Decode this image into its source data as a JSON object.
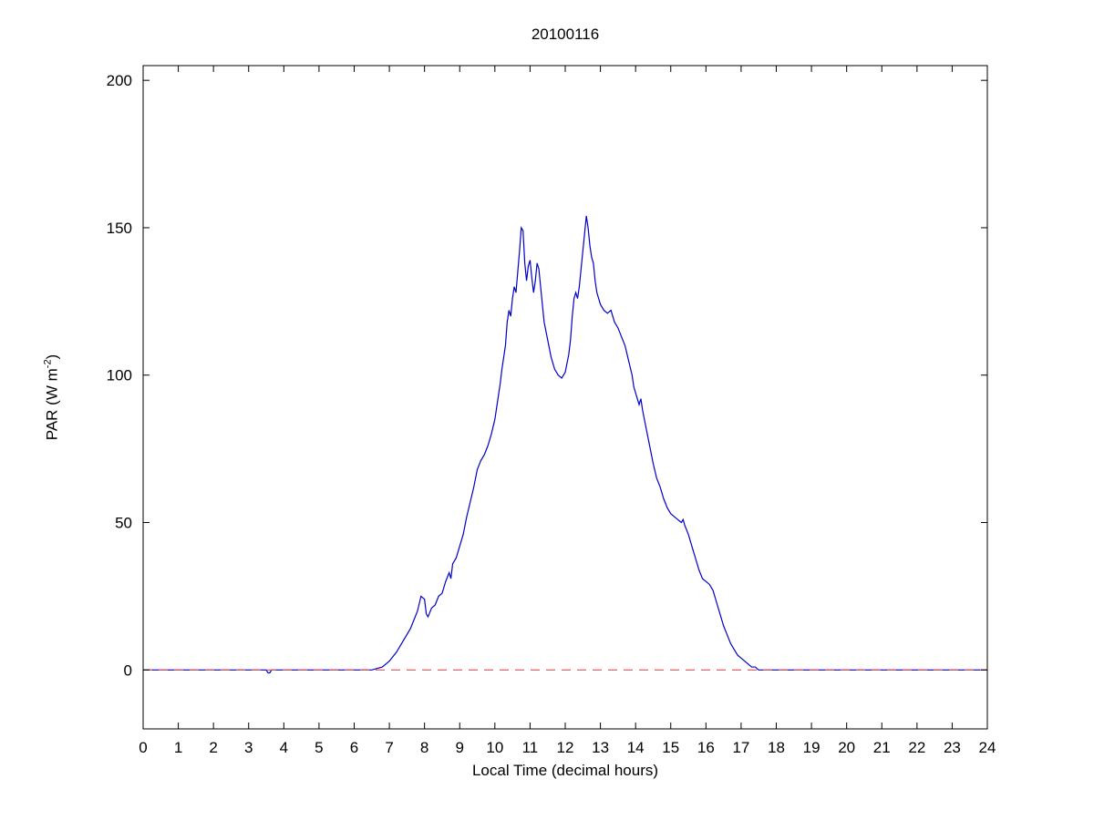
{
  "figure": {
    "background": "#ffffff",
    "axis_color": "#000000",
    "text_color": "#000000"
  },
  "chart_data": {
    "type": "line",
    "title": "20100116",
    "xlabel": "Local Time (decimal hours)",
    "ylabel": "PAR (W m-2)",
    "ylabel_prefix": "PAR (W m",
    "ylabel_sup": "-2",
    "ylabel_suffix": ")",
    "xlim": [
      0,
      24
    ],
    "ylim": [
      -20,
      205
    ],
    "xticks": [
      0,
      1,
      2,
      3,
      4,
      5,
      6,
      7,
      8,
      9,
      10,
      11,
      12,
      13,
      14,
      15,
      16,
      17,
      18,
      19,
      20,
      21,
      22,
      23,
      24
    ],
    "yticks": [
      0,
      50,
      100,
      150,
      200
    ],
    "grid": false,
    "legend": "none",
    "series": [
      {
        "name": "PAR",
        "type": "line",
        "style": "solid",
        "color": "#0000cc",
        "x": [
          0,
          1,
          2,
          3,
          3.5,
          3.55,
          3.6,
          3.65,
          4,
          5,
          6,
          6.5,
          6.8,
          7,
          7.2,
          7.4,
          7.6,
          7.8,
          7.9,
          8,
          8.05,
          8.1,
          8.2,
          8.3,
          8.4,
          8.5,
          8.6,
          8.7,
          8.75,
          8.8,
          8.9,
          9,
          9.1,
          9.2,
          9.3,
          9.4,
          9.5,
          9.6,
          9.7,
          9.8,
          9.9,
          10,
          10.1,
          10.15,
          10.2,
          10.3,
          10.35,
          10.4,
          10.45,
          10.5,
          10.55,
          10.6,
          10.65,
          10.7,
          10.75,
          10.8,
          10.85,
          10.9,
          10.95,
          11,
          11.05,
          11.1,
          11.15,
          11.2,
          11.25,
          11.3,
          11.35,
          11.4,
          11.5,
          11.6,
          11.7,
          11.8,
          11.9,
          12,
          12.1,
          12.15,
          12.2,
          12.25,
          12.3,
          12.35,
          12.4,
          12.45,
          12.5,
          12.55,
          12.6,
          12.65,
          12.7,
          12.75,
          12.8,
          12.85,
          12.9,
          13,
          13.1,
          13.2,
          13.3,
          13.35,
          13.4,
          13.5,
          13.6,
          13.7,
          13.8,
          13.9,
          13.95,
          14,
          14.1,
          14.15,
          14.2,
          14.3,
          14.4,
          14.5,
          14.6,
          14.7,
          14.75,
          14.8,
          14.9,
          15,
          15.1,
          15.2,
          15.3,
          15.35,
          15.4,
          15.5,
          15.6,
          15.7,
          15.8,
          15.9,
          16,
          16.1,
          16.2,
          16.3,
          16.4,
          16.5,
          16.6,
          16.7,
          16.8,
          16.9,
          17,
          17.1,
          17.2,
          17.3,
          17.4,
          17.5,
          18,
          19,
          20,
          21,
          22,
          23,
          24
        ],
        "y": [
          0,
          0,
          0,
          0,
          0,
          -1,
          -1,
          0,
          0,
          0,
          0,
          0,
          1,
          3,
          6,
          10,
          14,
          20,
          25,
          24,
          19,
          18,
          21,
          22,
          25,
          26,
          30,
          33,
          31,
          36,
          38,
          42,
          46,
          52,
          57,
          62,
          68,
          71,
          73,
          76,
          80,
          85,
          93,
          97,
          102,
          110,
          118,
          122,
          120,
          126,
          130,
          128,
          135,
          142,
          150,
          149,
          138,
          132,
          137,
          139,
          133,
          128,
          132,
          138,
          136,
          130,
          124,
          118,
          112,
          106,
          102,
          100,
          99,
          101,
          107,
          112,
          120,
          126,
          128,
          126,
          130,
          136,
          142,
          148,
          154,
          150,
          144,
          140,
          138,
          132,
          128,
          124,
          122,
          121,
          122,
          120,
          118,
          116,
          113,
          110,
          105,
          100,
          96,
          94,
          90,
          92,
          88,
          82,
          76,
          70,
          65,
          62,
          60,
          58,
          55,
          53,
          52,
          51,
          50,
          51,
          49,
          46,
          42,
          38,
          34,
          31,
          30,
          29,
          27,
          23,
          19,
          15,
          12,
          9,
          7,
          5,
          4,
          3,
          2,
          1,
          1,
          0,
          0,
          0,
          0,
          0,
          0,
          0,
          0
        ]
      },
      {
        "name": "zero-reference",
        "type": "line",
        "style": "dashed",
        "color": "#e05050",
        "x": [
          0,
          24
        ],
        "y": [
          0,
          0
        ]
      }
    ]
  }
}
